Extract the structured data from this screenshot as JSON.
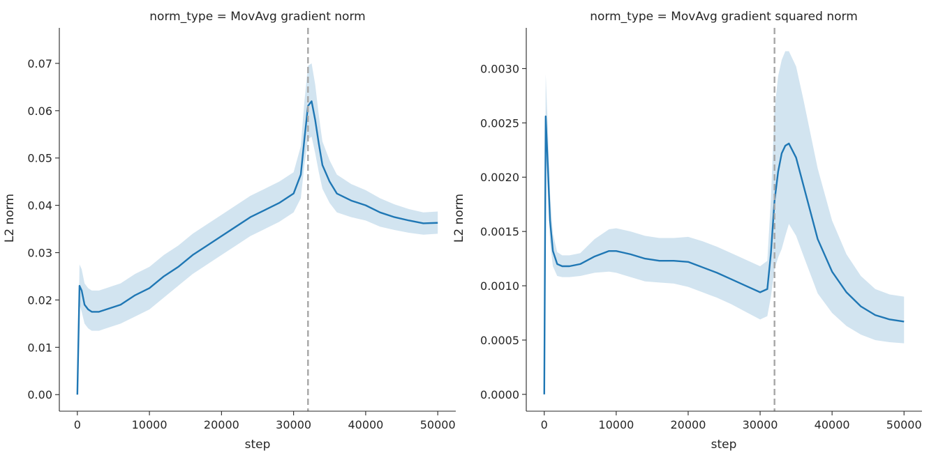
{
  "chart_data": [
    {
      "type": "line",
      "title": "norm_type = MovAvg gradient norm",
      "xlabel": "step",
      "ylabel": "L2 norm",
      "xlim": [
        -2500,
        52500
      ],
      "ylim": [
        -0.0035,
        0.0775
      ],
      "xticks": [
        0,
        10000,
        20000,
        30000,
        40000,
        50000
      ],
      "xtick_labels": [
        "0",
        "10000",
        "20000",
        "30000",
        "40000",
        "50000"
      ],
      "yticks": [
        0.0,
        0.01,
        0.02,
        0.03,
        0.04,
        0.05,
        0.06,
        0.07
      ],
      "ytick_labels": [
        "0.00",
        "0.01",
        "0.02",
        "0.03",
        "0.04",
        "0.05",
        "0.06",
        "0.07"
      ],
      "vline_x": 32000,
      "line_color": "#1f77b4",
      "band_color": "#1f77b4",
      "vline_color": "#a6a6a6",
      "series": [
        {
          "x": [
            0,
            300,
            600,
            1000,
            1500,
            2000,
            3000,
            4000,
            5000,
            6000,
            8000,
            10000,
            12000,
            14000,
            16000,
            18000,
            20000,
            22000,
            24000,
            26000,
            28000,
            30000,
            31000,
            31500,
            32000,
            32500,
            33000,
            33500,
            34000,
            35000,
            36000,
            38000,
            40000,
            42000,
            44000,
            46000,
            48000,
            50000
          ],
          "y": [
            0.0,
            0.023,
            0.022,
            0.019,
            0.018,
            0.0175,
            0.0175,
            0.018,
            0.0185,
            0.019,
            0.021,
            0.0225,
            0.025,
            0.027,
            0.0295,
            0.0315,
            0.0335,
            0.0355,
            0.0375,
            0.039,
            0.0405,
            0.0425,
            0.0465,
            0.054,
            0.061,
            0.062,
            0.058,
            0.053,
            0.0485,
            0.045,
            0.0425,
            0.041,
            0.04,
            0.0385,
            0.0375,
            0.0368,
            0.0362,
            0.0363
          ],
          "lower": [
            0.0,
            0.019,
            0.0175,
            0.015,
            0.014,
            0.0135,
            0.0135,
            0.014,
            0.0145,
            0.015,
            0.0165,
            0.018,
            0.0205,
            0.023,
            0.0255,
            0.0275,
            0.0295,
            0.0315,
            0.0335,
            0.035,
            0.0365,
            0.0385,
            0.0415,
            0.0485,
            0.054,
            0.0545,
            0.051,
            0.047,
            0.0435,
            0.0405,
            0.0385,
            0.0375,
            0.0368,
            0.0355,
            0.0348,
            0.0342,
            0.0338,
            0.034
          ],
          "upper": [
            0.0,
            0.0275,
            0.0265,
            0.0235,
            0.0225,
            0.022,
            0.022,
            0.0225,
            0.023,
            0.0235,
            0.0255,
            0.027,
            0.0295,
            0.0315,
            0.034,
            0.036,
            0.038,
            0.04,
            0.042,
            0.0435,
            0.045,
            0.047,
            0.0525,
            0.062,
            0.0695,
            0.07,
            0.0655,
            0.059,
            0.0535,
            0.0495,
            0.0465,
            0.0445,
            0.0432,
            0.0415,
            0.0402,
            0.0392,
            0.0385,
            0.0387
          ]
        }
      ]
    },
    {
      "type": "line",
      "title": "norm_type = MovAvg gradient squared norm",
      "xlabel": "step",
      "ylabel": "L2 norm",
      "xlim": [
        -2500,
        52500
      ],
      "ylim": [
        -0.000155,
        0.003375
      ],
      "xticks": [
        0,
        10000,
        20000,
        30000,
        40000,
        50000
      ],
      "xtick_labels": [
        "0",
        "10000",
        "20000",
        "30000",
        "40000",
        "50000"
      ],
      "yticks": [
        0.0,
        0.0005,
        0.001,
        0.0015,
        0.002,
        0.0025,
        0.003
      ],
      "ytick_labels": [
        "0.0000",
        "0.0005",
        "0.0010",
        "0.0015",
        "0.0020",
        "0.0025",
        "0.0030"
      ],
      "vline_x": 32000,
      "line_color": "#1f77b4",
      "band_color": "#1f77b4",
      "vline_color": "#a6a6a6",
      "series": [
        {
          "x": [
            0,
            200,
            500,
            800,
            1200,
            1800,
            2500,
            3500,
            5000,
            7000,
            9000,
            10000,
            12000,
            14000,
            16000,
            18000,
            20000,
            22000,
            24000,
            26000,
            28000,
            30000,
            31000,
            31500,
            32000,
            32500,
            33000,
            33500,
            34000,
            35000,
            36000,
            38000,
            40000,
            42000,
            44000,
            46000,
            48000,
            50000
          ],
          "y": [
            0.0,
            0.00256,
            0.0021,
            0.0016,
            0.00132,
            0.0012,
            0.00118,
            0.00118,
            0.0012,
            0.00127,
            0.00132,
            0.00132,
            0.00129,
            0.00125,
            0.00123,
            0.00123,
            0.00122,
            0.00117,
            0.00112,
            0.00106,
            0.001,
            0.00094,
            0.00097,
            0.0013,
            0.00178,
            0.00205,
            0.00222,
            0.00229,
            0.00231,
            0.00218,
            0.00193,
            0.00143,
            0.00113,
            0.00094,
            0.00081,
            0.00073,
            0.00069,
            0.00067
          ],
          "lower": [
            0.0,
            0.00225,
            0.00185,
            0.0014,
            0.00118,
            0.00109,
            0.00108,
            0.00108,
            0.00109,
            0.00112,
            0.00113,
            0.00112,
            0.00108,
            0.00104,
            0.00103,
            0.00102,
            0.00099,
            0.00094,
            0.00089,
            0.00083,
            0.00076,
            0.00069,
            0.00072,
            0.0009,
            0.00115,
            0.00126,
            0.00134,
            0.00146,
            0.00157,
            0.00146,
            0.00128,
            0.00093,
            0.00075,
            0.00063,
            0.00055,
            0.0005,
            0.00048,
            0.00047
          ],
          "upper": [
            0.0,
            0.00295,
            0.00245,
            0.00185,
            0.00148,
            0.00131,
            0.00128,
            0.00128,
            0.0013,
            0.00143,
            0.00152,
            0.00153,
            0.0015,
            0.00146,
            0.00144,
            0.00144,
            0.00145,
            0.00141,
            0.00136,
            0.0013,
            0.00124,
            0.00118,
            0.00123,
            0.0018,
            0.00262,
            0.00293,
            0.00308,
            0.00316,
            0.00316,
            0.00302,
            0.00272,
            0.00208,
            0.0016,
            0.00129,
            0.00109,
            0.00097,
            0.00092,
            0.0009
          ]
        }
      ]
    }
  ]
}
